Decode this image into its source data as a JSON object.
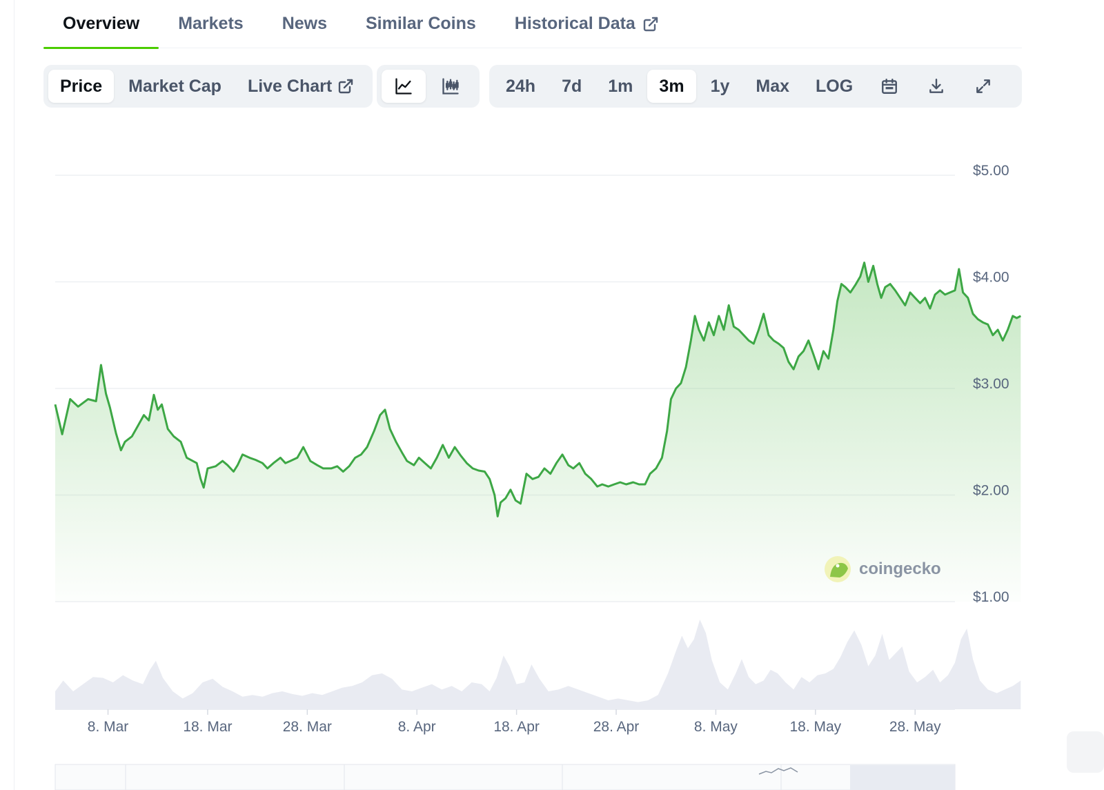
{
  "tabs": [
    {
      "label": "Overview",
      "active": true
    },
    {
      "label": "Markets",
      "active": false
    },
    {
      "label": "News",
      "active": false
    },
    {
      "label": "Similar Coins",
      "active": false
    },
    {
      "label": "Historical Data",
      "active": false,
      "external": true
    }
  ],
  "toolbar": {
    "metric": [
      {
        "label": "Price",
        "active": true
      },
      {
        "label": "Market Cap",
        "active": false
      },
      {
        "label": "Live Chart",
        "active": false,
        "external": true
      }
    ],
    "chart_type_icons": [
      "line-chart-icon",
      "candlestick-chart-icon"
    ],
    "ranges": [
      {
        "label": "24h",
        "active": false
      },
      {
        "label": "7d",
        "active": false
      },
      {
        "label": "1m",
        "active": false
      },
      {
        "label": "3m",
        "active": true
      },
      {
        "label": "1y",
        "active": false
      },
      {
        "label": "Max",
        "active": false
      },
      {
        "label": "LOG",
        "active": false
      }
    ],
    "tool_icons": [
      "calendar-icon",
      "download-icon",
      "expand-icon"
    ]
  },
  "watermark": "coingecko",
  "colors": {
    "line": "#3da745",
    "fill": "#8fd48a",
    "accent": "#4bcc00",
    "volume": "#e9ebf2"
  },
  "chart_data": {
    "type": "area",
    "x_ticks": [
      "8. Mar",
      "18. Mar",
      "28. Mar",
      "8. Apr",
      "18. Apr",
      "28. Apr",
      "8. May",
      "18. May",
      "28. May"
    ],
    "y_ticks": [
      "$5.00",
      "$4.00",
      "$3.00",
      "$2.00",
      "$1.00"
    ],
    "ylim": [
      1,
      5
    ],
    "x_range_days": [
      -5.3,
      85
    ],
    "series": [
      {
        "values": [
          [
            -5.3,
            2.85
          ],
          [
            -4.6,
            2.57
          ],
          [
            -3.8,
            2.9
          ],
          [
            -3.0,
            2.83
          ],
          [
            -2.0,
            2.9
          ],
          [
            -1.2,
            2.88
          ],
          [
            -0.7,
            3.22
          ],
          [
            -0.2,
            2.95
          ],
          [
            0.2,
            2.82
          ],
          [
            0.8,
            2.58
          ],
          [
            1.3,
            2.42
          ],
          [
            1.7,
            2.5
          ],
          [
            2.4,
            2.55
          ],
          [
            3.0,
            2.65
          ],
          [
            3.6,
            2.75
          ],
          [
            4.1,
            2.7
          ],
          [
            4.6,
            2.94
          ],
          [
            5.0,
            2.8
          ],
          [
            5.4,
            2.85
          ],
          [
            6.0,
            2.62
          ],
          [
            6.6,
            2.55
          ],
          [
            7.3,
            2.5
          ],
          [
            7.9,
            2.35
          ],
          [
            8.5,
            2.32
          ],
          [
            8.9,
            2.3
          ],
          [
            9.3,
            2.15
          ],
          [
            9.6,
            2.07
          ],
          [
            10.0,
            2.25
          ],
          [
            10.8,
            2.27
          ],
          [
            11.5,
            2.32
          ],
          [
            12.0,
            2.28
          ],
          [
            12.6,
            2.22
          ],
          [
            13.0,
            2.28
          ],
          [
            13.5,
            2.38
          ],
          [
            14.2,
            2.35
          ],
          [
            14.8,
            2.33
          ],
          [
            15.5,
            2.3
          ],
          [
            16.0,
            2.25
          ],
          [
            16.6,
            2.3
          ],
          [
            17.3,
            2.35
          ],
          [
            17.8,
            2.3
          ],
          [
            18.3,
            2.32
          ],
          [
            19.0,
            2.35
          ],
          [
            19.6,
            2.45
          ],
          [
            20.3,
            2.32
          ],
          [
            21.0,
            2.28
          ],
          [
            21.6,
            2.25
          ],
          [
            22.4,
            2.25
          ],
          [
            23.0,
            2.27
          ],
          [
            23.6,
            2.22
          ],
          [
            24.2,
            2.27
          ],
          [
            24.8,
            2.35
          ],
          [
            25.4,
            2.38
          ],
          [
            26.0,
            2.45
          ],
          [
            26.7,
            2.6
          ],
          [
            27.3,
            2.75
          ],
          [
            27.8,
            2.8
          ],
          [
            28.3,
            2.62
          ],
          [
            28.9,
            2.5
          ],
          [
            29.5,
            2.4
          ],
          [
            30.0,
            2.32
          ],
          [
            30.7,
            2.28
          ],
          [
            31.2,
            2.35
          ],
          [
            31.8,
            2.3
          ],
          [
            32.4,
            2.25
          ],
          [
            33.0,
            2.35
          ],
          [
            33.6,
            2.47
          ],
          [
            34.2,
            2.35
          ],
          [
            34.8,
            2.45
          ],
          [
            35.4,
            2.37
          ],
          [
            36.0,
            2.3
          ],
          [
            36.6,
            2.25
          ],
          [
            37.2,
            2.23
          ],
          [
            37.8,
            2.22
          ],
          [
            38.3,
            2.15
          ],
          [
            38.8,
            2.0
          ],
          [
            39.1,
            1.8
          ],
          [
            39.4,
            1.93
          ],
          [
            39.9,
            1.97
          ],
          [
            40.4,
            2.05
          ],
          [
            40.9,
            1.95
          ],
          [
            41.4,
            1.92
          ],
          [
            42.0,
            2.2
          ],
          [
            42.6,
            2.15
          ],
          [
            43.2,
            2.17
          ],
          [
            43.8,
            2.25
          ],
          [
            44.4,
            2.2
          ],
          [
            45.0,
            2.3
          ],
          [
            45.6,
            2.38
          ],
          [
            46.2,
            2.28
          ],
          [
            46.7,
            2.25
          ],
          [
            47.3,
            2.3
          ],
          [
            47.9,
            2.2
          ],
          [
            48.5,
            2.15
          ],
          [
            49.1,
            2.08
          ],
          [
            49.6,
            2.1
          ],
          [
            50.2,
            2.08
          ],
          [
            50.8,
            2.1
          ],
          [
            51.4,
            2.12
          ],
          [
            52.0,
            2.1
          ],
          [
            52.7,
            2.12
          ],
          [
            53.3,
            2.1
          ],
          [
            53.9,
            2.1
          ],
          [
            54.4,
            2.2
          ],
          [
            55.0,
            2.25
          ],
          [
            55.6,
            2.35
          ],
          [
            56.1,
            2.6
          ],
          [
            56.5,
            2.9
          ],
          [
            57.0,
            3.0
          ],
          [
            57.5,
            3.05
          ],
          [
            58.0,
            3.2
          ],
          [
            58.5,
            3.45
          ],
          [
            58.9,
            3.68
          ],
          [
            59.3,
            3.55
          ],
          [
            59.8,
            3.45
          ],
          [
            60.3,
            3.62
          ],
          [
            60.8,
            3.5
          ],
          [
            61.3,
            3.68
          ],
          [
            61.8,
            3.55
          ],
          [
            62.3,
            3.78
          ],
          [
            62.8,
            3.58
          ],
          [
            63.3,
            3.55
          ],
          [
            63.8,
            3.5
          ],
          [
            64.3,
            3.45
          ],
          [
            64.8,
            3.42
          ],
          [
            65.3,
            3.55
          ],
          [
            65.8,
            3.7
          ],
          [
            66.3,
            3.5
          ],
          [
            66.8,
            3.45
          ],
          [
            67.3,
            3.42
          ],
          [
            67.8,
            3.38
          ],
          [
            68.3,
            3.25
          ],
          [
            68.8,
            3.18
          ],
          [
            69.3,
            3.3
          ],
          [
            69.8,
            3.35
          ],
          [
            70.3,
            3.45
          ],
          [
            70.8,
            3.32
          ],
          [
            71.3,
            3.18
          ],
          [
            71.8,
            3.35
          ],
          [
            72.3,
            3.28
          ],
          [
            72.8,
            3.55
          ],
          [
            73.2,
            3.82
          ],
          [
            73.6,
            3.98
          ],
          [
            74.0,
            3.95
          ],
          [
            74.5,
            3.9
          ],
          [
            75.0,
            3.97
          ],
          [
            75.5,
            4.05
          ],
          [
            75.9,
            4.18
          ],
          [
            76.3,
            4.0
          ],
          [
            76.8,
            4.15
          ],
          [
            77.2,
            3.98
          ],
          [
            77.6,
            3.85
          ],
          [
            78.0,
            3.95
          ],
          [
            78.5,
            3.98
          ],
          [
            79.0,
            3.92
          ],
          [
            79.5,
            3.85
          ],
          [
            80.0,
            3.78
          ],
          [
            80.5,
            3.9
          ],
          [
            81.0,
            3.85
          ],
          [
            81.5,
            3.8
          ],
          [
            82.0,
            3.85
          ],
          [
            82.5,
            3.75
          ],
          [
            83.0,
            3.88
          ],
          [
            83.5,
            3.92
          ],
          [
            84.0,
            3.88
          ],
          [
            84.5,
            3.9
          ],
          [
            85.0,
            3.92
          ],
          [
            85.4,
            4.12
          ],
          [
            85.8,
            3.9
          ],
          [
            86.3,
            3.85
          ],
          [
            86.8,
            3.7
          ],
          [
            87.3,
            3.65
          ],
          [
            87.8,
            3.62
          ],
          [
            88.3,
            3.6
          ],
          [
            88.8,
            3.5
          ],
          [
            89.3,
            3.55
          ],
          [
            89.8,
            3.45
          ],
          [
            90.3,
            3.55
          ],
          [
            90.8,
            3.68
          ],
          [
            91.2,
            3.66
          ],
          [
            91.6,
            3.68
          ]
        ]
      }
    ],
    "volume": [
      [
        -5.3,
        0.2
      ],
      [
        -4.5,
        0.32
      ],
      [
        -3.5,
        0.2
      ],
      [
        -2.5,
        0.28
      ],
      [
        -1.5,
        0.36
      ],
      [
        -0.5,
        0.35
      ],
      [
        0.5,
        0.3
      ],
      [
        1.5,
        0.38
      ],
      [
        2.5,
        0.32
      ],
      [
        3.5,
        0.28
      ],
      [
        4.2,
        0.44
      ],
      [
        4.8,
        0.54
      ],
      [
        5.5,
        0.35
      ],
      [
        6.5,
        0.2
      ],
      [
        7.5,
        0.12
      ],
      [
        8.5,
        0.18
      ],
      [
        9.5,
        0.3
      ],
      [
        10.5,
        0.34
      ],
      [
        11.5,
        0.25
      ],
      [
        12.5,
        0.2
      ],
      [
        13.5,
        0.14
      ],
      [
        14.5,
        0.16
      ],
      [
        15.5,
        0.14
      ],
      [
        16.5,
        0.18
      ],
      [
        17.5,
        0.2
      ],
      [
        18.5,
        0.17
      ],
      [
        19.5,
        0.15
      ],
      [
        20.5,
        0.18
      ],
      [
        21.5,
        0.16
      ],
      [
        22.5,
        0.2
      ],
      [
        23.5,
        0.24
      ],
      [
        24.5,
        0.26
      ],
      [
        25.5,
        0.3
      ],
      [
        26.5,
        0.38
      ],
      [
        27.5,
        0.4
      ],
      [
        28.5,
        0.34
      ],
      [
        29.5,
        0.22
      ],
      [
        30.5,
        0.2
      ],
      [
        31.5,
        0.24
      ],
      [
        32.5,
        0.28
      ],
      [
        33.5,
        0.22
      ],
      [
        34.5,
        0.26
      ],
      [
        35.5,
        0.2
      ],
      [
        36.5,
        0.3
      ],
      [
        37.5,
        0.28
      ],
      [
        38.3,
        0.2
      ],
      [
        39.0,
        0.35
      ],
      [
        39.7,
        0.6
      ],
      [
        40.3,
        0.48
      ],
      [
        41.0,
        0.28
      ],
      [
        41.8,
        0.3
      ],
      [
        42.5,
        0.5
      ],
      [
        43.3,
        0.34
      ],
      [
        44.2,
        0.2
      ],
      [
        45.2,
        0.22
      ],
      [
        46.2,
        0.26
      ],
      [
        47.2,
        0.22
      ],
      [
        48.2,
        0.18
      ],
      [
        49.2,
        0.14
      ],
      [
        50.2,
        0.1
      ],
      [
        51.2,
        0.12
      ],
      [
        52.2,
        0.1
      ],
      [
        53.2,
        0.08
      ],
      [
        54.2,
        0.1
      ],
      [
        55.2,
        0.16
      ],
      [
        56.2,
        0.4
      ],
      [
        57.0,
        0.65
      ],
      [
        57.6,
        0.82
      ],
      [
        58.2,
        0.68
      ],
      [
        58.8,
        0.78
      ],
      [
        59.4,
        1.0
      ],
      [
        60.0,
        0.85
      ],
      [
        60.6,
        0.55
      ],
      [
        61.4,
        0.3
      ],
      [
        62.2,
        0.22
      ],
      [
        63.0,
        0.4
      ],
      [
        63.6,
        0.56
      ],
      [
        64.3,
        0.36
      ],
      [
        65.0,
        0.28
      ],
      [
        65.8,
        0.32
      ],
      [
        66.5,
        0.44
      ],
      [
        67.2,
        0.4
      ],
      [
        68.0,
        0.3
      ],
      [
        68.8,
        0.22
      ],
      [
        69.6,
        0.36
      ],
      [
        70.4,
        0.3
      ],
      [
        71.2,
        0.38
      ],
      [
        72.0,
        0.4
      ],
      [
        72.8,
        0.45
      ],
      [
        73.5,
        0.58
      ],
      [
        74.2,
        0.75
      ],
      [
        74.9,
        0.88
      ],
      [
        75.6,
        0.72
      ],
      [
        76.3,
        0.48
      ],
      [
        77.0,
        0.6
      ],
      [
        77.7,
        0.84
      ],
      [
        78.4,
        0.55
      ],
      [
        79.0,
        0.62
      ],
      [
        79.7,
        0.7
      ],
      [
        80.4,
        0.42
      ],
      [
        81.2,
        0.3
      ],
      [
        82.0,
        0.36
      ],
      [
        82.8,
        0.44
      ],
      [
        83.5,
        0.3
      ],
      [
        84.3,
        0.38
      ],
      [
        85.0,
        0.52
      ],
      [
        85.6,
        0.78
      ],
      [
        86.2,
        0.9
      ],
      [
        86.8,
        0.56
      ],
      [
        87.5,
        0.32
      ],
      [
        88.3,
        0.22
      ],
      [
        89.2,
        0.18
      ],
      [
        90.0,
        0.22
      ],
      [
        90.8,
        0.26
      ],
      [
        91.6,
        0.32
      ]
    ],
    "grid": true,
    "legend": "none"
  }
}
